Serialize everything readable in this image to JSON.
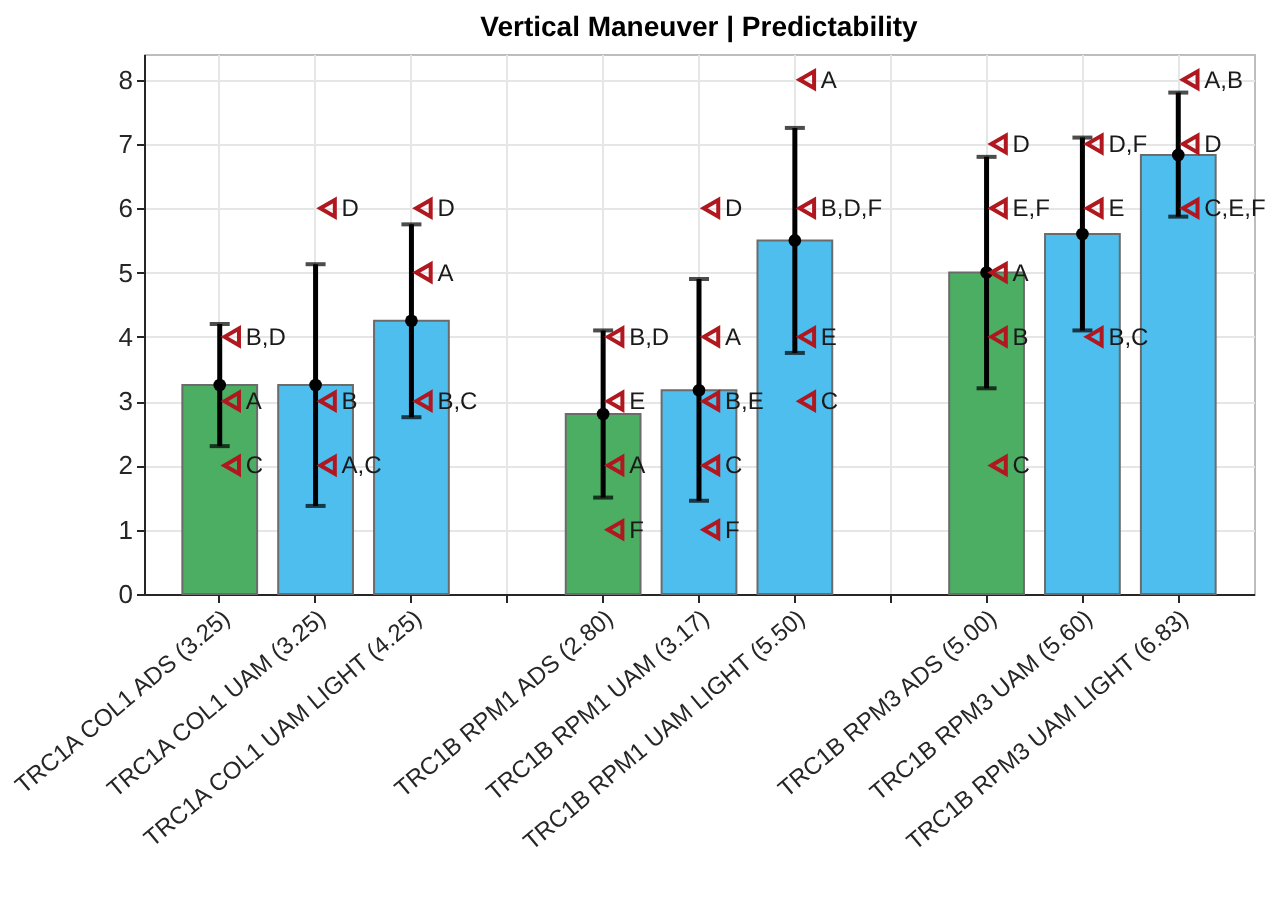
{
  "chart_data": {
    "type": "bar",
    "title": "Vertical Maneuver | Predictability",
    "categories": [
      "TRC1A COL1 ADS (3.25)",
      "TRC1A COL1 UAM (3.25)",
      "TRC1A COL1 UAM LIGHT (4.25)",
      null,
      "TRC1B RPM1 ADS (2.80)",
      "TRC1B RPM1 UAM (3.17)",
      "TRC1B RPM1 UAM LIGHT (5.50)",
      null,
      "TRC1B RPM3 ADS (5.00)",
      "TRC1B RPM3 UAM (5.60)",
      "TRC1B RPM3 UAM LIGHT (6.83)"
    ],
    "series": [
      {
        "colors": [
          "#4cae62",
          "#4dbeee",
          "#4dbeee",
          null,
          "#4cae62",
          "#4dbeee",
          "#4dbeee",
          null,
          "#4cae62",
          "#4dbeee",
          "#4dbeee"
        ],
        "values": [
          3.25,
          3.25,
          4.25,
          null,
          2.8,
          3.17,
          5.5,
          null,
          5.0,
          5.6,
          6.83
        ],
        "errors": [
          [
            2.3,
            4.2
          ],
          [
            1.37,
            5.13
          ],
          [
            2.75,
            5.75
          ],
          null,
          [
            1.5,
            4.1
          ],
          [
            1.45,
            4.9
          ],
          [
            3.75,
            7.25
          ],
          null,
          [
            3.2,
            6.8
          ],
          [
            4.1,
            7.1
          ],
          [
            5.87,
            7.8
          ]
        ]
      },
      {
        "type": "scatter",
        "marker": "circle",
        "color": "#000000",
        "x": [
          "TRC1A COL1 ADS (3.25)",
          "TRC1A COL1 UAM (3.25)",
          "TRC1A COL1 UAM LIGHT (4.25)",
          "TRC1B RPM1 ADS (2.80)",
          "TRC1B RPM1 UAM (3.17)",
          "TRC1B RPM1 UAM LIGHT (5.50)",
          "TRC1B RPM3 ADS (5.00)",
          "TRC1B RPM3 UAM (5.60)",
          "TRC1B RPM3 UAM LIGHT (6.83)"
        ],
        "values": [
          3.25,
          3.25,
          4.25,
          2.8,
          3.17,
          5.5,
          5.0,
          5.6,
          6.83
        ]
      },
      {
        "type": "scatter",
        "marker": "triangle",
        "color": "#b0171f",
        "x": [
          "TRC1A COL1 ADS (3.25)",
          "TRC1A COL1 ADS (3.25)",
          "TRC1A COL1 ADS (3.25)",
          "TRC1A COL1 UAM (3.25)",
          "TRC1A COL1 UAM (3.25)",
          "TRC1A COL1 UAM (3.25)",
          "TRC1A COL1 UAM LIGHT (4.25)",
          "TRC1A COL1 UAM LIGHT (4.25)",
          "TRC1A COL1 UAM LIGHT (4.25)",
          "TRC1B RPM1 ADS (2.80)",
          "TRC1B RPM1 ADS (2.80)",
          "TRC1B RPM1 ADS (2.80)",
          "TRC1B RPM1 ADS (2.80)",
          "TRC1B RPM1 UAM (3.17)",
          "TRC1B RPM1 UAM (3.17)",
          "TRC1B RPM1 UAM (3.17)",
          "TRC1B RPM1 UAM (3.17)",
          "TRC1B RPM1 UAM (3.17)",
          "TRC1B RPM1 UAM LIGHT (5.50)",
          "TRC1B RPM1 UAM LIGHT (5.50)",
          "TRC1B RPM1 UAM LIGHT (5.50)",
          "TRC1B RPM1 UAM LIGHT (5.50)",
          "TRC1B RPM3 ADS (5.00)",
          "TRC1B RPM3 ADS (5.00)",
          "TRC1B RPM3 ADS (5.00)",
          "TRC1B RPM3 ADS (5.00)",
          "TRC1B RPM3 ADS (5.00)",
          "TRC1B RPM3 UAM (5.60)",
          "TRC1B RPM3 UAM (5.60)",
          "TRC1B RPM3 UAM (5.60)",
          "TRC1B RPM3 UAM LIGHT (6.83)",
          "TRC1B RPM3 UAM LIGHT (6.83)",
          "TRC1B RPM3 UAM LIGHT (6.83)"
        ],
        "values": [
          4,
          3,
          2,
          6,
          3,
          2,
          6,
          5,
          3,
          4,
          3,
          2,
          1,
          6,
          4,
          3,
          2,
          1,
          8,
          6,
          4,
          3,
          7,
          6,
          5,
          4,
          2,
          7,
          6,
          4,
          8,
          7,
          6
        ],
        "value_labels": [
          "B,D",
          "A",
          "C",
          "D",
          "B",
          "A,C",
          "D",
          "A",
          "B,C",
          "B,D",
          "E",
          "A",
          "F",
          "D",
          "A",
          "B,E",
          "C",
          "F",
          "A",
          "B,D,F",
          "E",
          "C",
          "D",
          "E,F",
          "A",
          "B",
          "C",
          "D,F",
          "E",
          "B,C",
          "A,B",
          "D",
          "C,E,F"
        ]
      }
    ],
    "ylim": [
      0,
      8.4
    ],
    "yticks": [
      0,
      1,
      2,
      3,
      4,
      5,
      6,
      7,
      8
    ],
    "grid": true
  }
}
